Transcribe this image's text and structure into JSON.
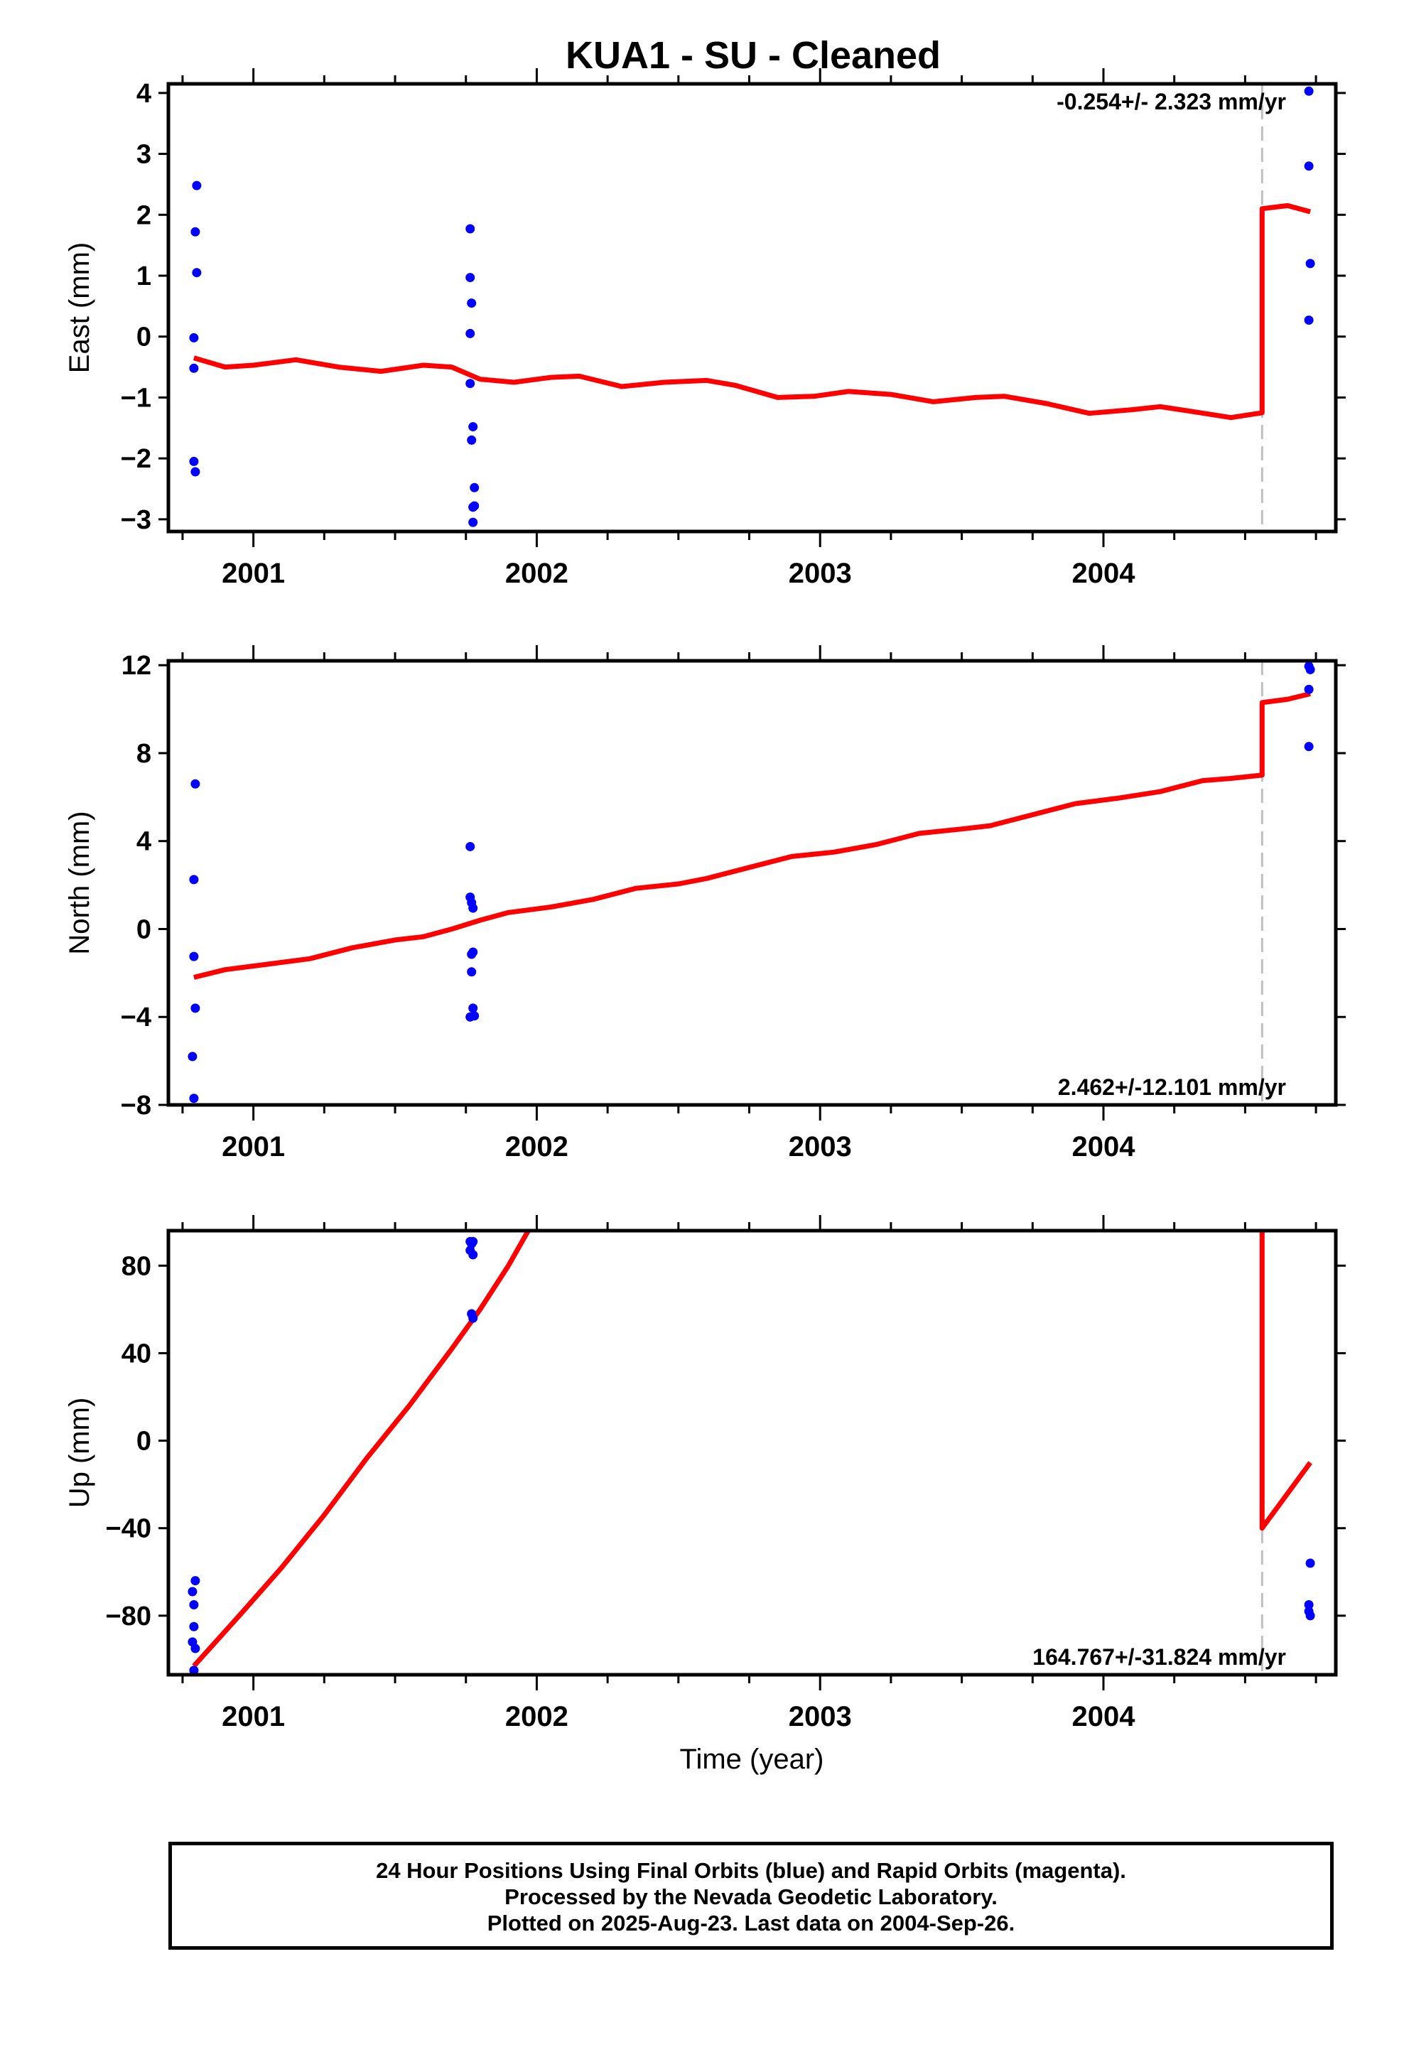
{
  "title": "KUA1  - SU - Cleaned",
  "footer": {
    "line1": "24 Hour Positions Using Final Orbits (blue) and Rapid Orbits (magenta).",
    "line2": "Processed by the Nevada Geodetic Laboratory.",
    "line3": "Plotted on 2025-Aug-23. Last data on 2004-Sep-26."
  },
  "colors": {
    "points": "#0000ff",
    "model": "#ff0000",
    "break_line": "#c0c0c0",
    "frame": "#000000"
  },
  "chart_data": [
    {
      "type": "scatter",
      "ylabel": "East (mm)",
      "xlabel": "",
      "rate_label": "-0.254+/- 2.323 mm/yr",
      "rate_position": "top-right",
      "xlim": [
        2000.7,
        2004.82
      ],
      "ylim": [
        -3.2,
        4.15
      ],
      "yticks": [
        4,
        3,
        2,
        1,
        0,
        -1,
        -2,
        -3
      ],
      "ytick_labels": [
        "4",
        "3",
        "2",
        "1",
        "0",
        "−1",
        "−2",
        "−3"
      ],
      "xticks": [
        2001,
        2002,
        2003,
        2004
      ],
      "xtick_labels": [
        "2001",
        "2002",
        "2003",
        "2004"
      ],
      "break_year": 2004.56,
      "series": [
        {
          "kind": "points",
          "x": [
            2000.79,
            2000.79,
            2000.8,
            2000.795,
            2000.79,
            2000.795,
            2000.8,
            2001.765,
            2001.765,
            2001.77,
            2001.765,
            2001.765,
            2001.775,
            2001.77,
            2001.78,
            2001.775,
            2001.78,
            2001.775,
            2001.775,
            2004.725,
            2004.725,
            2004.73,
            2004.725
          ],
          "y": [
            -0.52,
            -0.02,
            1.05,
            1.72,
            -2.05,
            -2.22,
            2.48,
            1.77,
            0.97,
            0.55,
            0.05,
            -0.77,
            -1.48,
            -1.7,
            -2.48,
            -2.8,
            -2.78,
            -3.05,
            -2.8,
            4.03,
            2.8,
            1.2,
            0.27
          ]
        },
        {
          "kind": "line",
          "x": [
            2000.79,
            2000.9,
            2001.0,
            2001.15,
            2001.3,
            2001.45,
            2001.6,
            2001.7,
            2001.8,
            2001.92,
            2002.05,
            2002.15,
            2002.3,
            2002.45,
            2002.6,
            2002.7,
            2002.85,
            2002.98,
            2003.1,
            2003.25,
            2003.4,
            2003.55,
            2003.65,
            2003.8,
            2003.95,
            2004.1,
            2004.2,
            2004.3,
            2004.45,
            2004.56,
            2004.56,
            2004.65,
            2004.73
          ],
          "y": [
            -0.35,
            -0.5,
            -0.47,
            -0.38,
            -0.5,
            -0.57,
            -0.47,
            -0.5,
            -0.7,
            -0.75,
            -0.67,
            -0.65,
            -0.82,
            -0.75,
            -0.72,
            -0.8,
            -1.0,
            -0.98,
            -0.9,
            -0.95,
            -1.07,
            -1.0,
            -0.98,
            -1.1,
            -1.26,
            -1.2,
            -1.15,
            -1.22,
            -1.33,
            -1.25,
            2.1,
            2.15,
            2.05
          ]
        }
      ]
    },
    {
      "type": "scatter",
      "ylabel": "North (mm)",
      "xlabel": "",
      "rate_label": "2.462+/-12.101 mm/yr",
      "rate_position": "bottom-right",
      "xlim": [
        2000.7,
        2004.82
      ],
      "ylim": [
        -8,
        12.2
      ],
      "yticks": [
        12,
        8,
        4,
        0,
        -4,
        -8
      ],
      "ytick_labels": [
        "12",
        "8",
        "4",
        "0",
        "−4",
        "−8"
      ],
      "xticks": [
        2001,
        2002,
        2003,
        2004
      ],
      "xtick_labels": [
        "2001",
        "2002",
        "2003",
        "2004"
      ],
      "break_year": 2004.56,
      "series": [
        {
          "kind": "points",
          "x": [
            2000.795,
            2000.79,
            2000.79,
            2000.795,
            2000.785,
            2000.79,
            2001.765,
            2001.765,
            2001.77,
            2001.775,
            2001.775,
            2001.77,
            2001.77,
            2001.765,
            2001.775,
            2001.78,
            2004.725,
            2004.73,
            2004.725,
            2004.725
          ],
          "y": [
            6.6,
            2.25,
            -1.25,
            -3.6,
            -5.8,
            -7.7,
            3.75,
            1.45,
            1.2,
            0.95,
            -1.05,
            -1.15,
            -1.95,
            -4.0,
            -3.6,
            -3.95,
            11.95,
            11.8,
            10.9,
            8.3
          ]
        },
        {
          "kind": "line",
          "x": [
            2000.79,
            2000.9,
            2001.05,
            2001.2,
            2001.35,
            2001.5,
            2001.6,
            2001.7,
            2001.8,
            2001.9,
            2002.05,
            2002.2,
            2002.35,
            2002.5,
            2002.6,
            2002.75,
            2002.9,
            2003.05,
            2003.2,
            2003.35,
            2003.5,
            2003.6,
            2003.75,
            2003.9,
            2004.05,
            2004.2,
            2004.35,
            2004.45,
            2004.56,
            2004.56,
            2004.65,
            2004.73
          ],
          "y": [
            -2.2,
            -1.85,
            -1.6,
            -1.35,
            -0.85,
            -0.5,
            -0.35,
            0.0,
            0.4,
            0.75,
            1.0,
            1.35,
            1.85,
            2.05,
            2.3,
            2.8,
            3.3,
            3.5,
            3.85,
            4.35,
            4.55,
            4.7,
            5.2,
            5.7,
            5.95,
            6.25,
            6.75,
            6.85,
            7.0,
            10.3,
            10.45,
            10.7
          ]
        }
      ]
    },
    {
      "type": "scatter",
      "ylabel": "Up (mm)",
      "xlabel": "Time (year)",
      "rate_label": "164.767+/-31.824 mm/yr",
      "rate_position": "bottom-right",
      "xlim": [
        2000.7,
        2004.82
      ],
      "ylim": [
        -107,
        96
      ],
      "yticks": [
        80,
        40,
        0,
        -40,
        -80
      ],
      "ytick_labels": [
        "80",
        "40",
        "0",
        "−40",
        "−80"
      ],
      "xticks": [
        2001,
        2002,
        2003,
        2004
      ],
      "xtick_labels": [
        "2001",
        "2002",
        "2003",
        "2004"
      ],
      "break_year": 2004.56,
      "series": [
        {
          "kind": "points",
          "x": [
            2000.795,
            2000.785,
            2000.79,
            2000.79,
            2000.785,
            2000.795,
            2000.79,
            2001.765,
            2001.77,
            2001.775,
            2001.765,
            2001.775,
            2001.77,
            2001.775,
            2004.73,
            2004.725,
            2004.725,
            2004.73
          ],
          "y": [
            -64,
            -69,
            -75,
            -85,
            -92,
            -95,
            -105,
            91,
            90,
            91,
            87,
            85,
            58,
            56,
            -56,
            -75,
            -78,
            -80
          ]
        },
        {
          "kind": "line",
          "x": [
            2000.79,
            2000.95,
            2001.1,
            2001.25,
            2001.4,
            2001.55,
            2001.7,
            2001.8,
            2001.9,
            2001.97
          ],
          "y": [
            -103,
            -80,
            -58,
            -34,
            -8,
            16,
            42,
            60,
            80,
            96
          ]
        },
        {
          "kind": "line",
          "x": [
            2004.56,
            2004.56,
            2004.73
          ],
          "y": [
            96,
            -40,
            -10
          ]
        }
      ]
    }
  ]
}
